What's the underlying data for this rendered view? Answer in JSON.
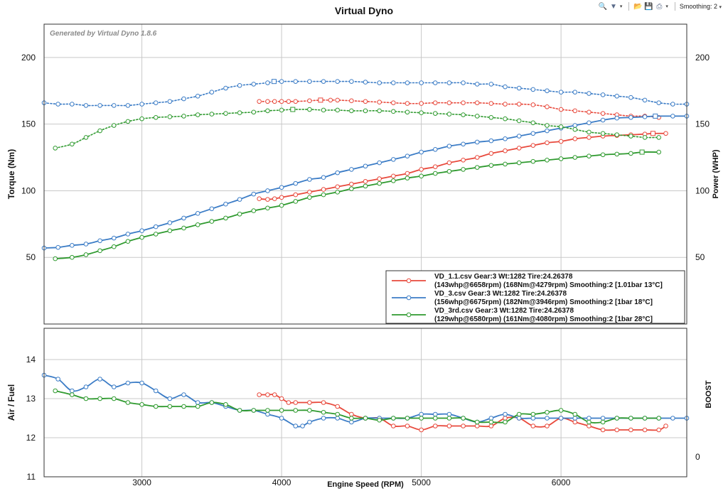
{
  "title": "Virtual Dyno",
  "toolbar": {
    "smoothing_label": "Smoothing: 2",
    "icons": [
      "zoom-icon",
      "filter-icon",
      "open-file-icon",
      "save-icon",
      "print-icon"
    ]
  },
  "watermark": "Generated by Virtual Dyno 1.8.6",
  "colors": {
    "red": "#e8493c",
    "blue": "#3b7cc6",
    "green": "#2f9a2f",
    "grid": "#c8c8c8",
    "axis": "#333333"
  },
  "chart_data": [
    {
      "id": "power-torque",
      "type": "line",
      "xlim": [
        2300,
        6900
      ],
      "ylim": [
        0,
        225
      ],
      "ylabel": "Torque (Nm)",
      "ylabel_right": "Power (WHP)",
      "x_ticks": [
        3000,
        4000,
        5000,
        6000
      ],
      "y_ticks": [
        50,
        100,
        150,
        200
      ],
      "legend_position": "bottom-right",
      "series": [
        {
          "name": "VD_1.1.csv  Gear:3  Wt:1282  Tire:24.26378",
          "summary": "(143whp@6658rpm)  (168Nm@4279rpm)  Smoothing:2  [1.01bar  13°C]",
          "color": "red",
          "torque": {
            "x": [
              3840,
              3900,
              3950,
              4000,
              4050,
              4100,
              4200,
              4279,
              4350,
              4400,
              4500,
              4600,
              4700,
              4800,
              4900,
              5000,
              5100,
              5200,
              5300,
              5400,
              5500,
              5600,
              5700,
              5800,
              5900,
              6000,
              6100,
              6200,
              6300,
              6400,
              6500,
              6600,
              6700
            ],
            "y": [
              167,
              167,
              167,
              167,
              167,
              167,
              167.5,
              168,
              168,
              168,
              167.5,
              167,
              166.5,
              166,
              165.5,
              165.5,
              166,
              166,
              166,
              166,
              165.5,
              165,
              165,
              164.5,
              163,
              161,
              160,
              159,
              158,
              157,
              156,
              156,
              155
            ]
          },
          "power": {
            "x": [
              3840,
              3900,
              3950,
              4000,
              4100,
              4200,
              4300,
              4400,
              4500,
              4600,
              4700,
              4800,
              4900,
              5000,
              5100,
              5200,
              5300,
              5400,
              5500,
              5600,
              5700,
              5800,
              5900,
              6000,
              6100,
              6200,
              6300,
              6400,
              6500,
              6600,
              6658,
              6750
            ],
            "y": [
              94,
              93.5,
              94,
              95,
              97,
              99,
              101,
              103,
              105,
              107,
              109,
              111,
              113,
              116,
              118,
              121,
              123,
              125,
              128,
              130,
              132,
              134,
              136,
              137,
              139,
              140,
              141,
              141.5,
              142,
              142.5,
              143,
              143
            ]
          },
          "afr": {
            "x": [
              3840,
              3900,
              3950,
              4000,
              4050,
              4100,
              4200,
              4300,
              4400,
              4500,
              4600,
              4700,
              4800,
              4900,
              5000,
              5100,
              5200,
              5300,
              5400,
              5500,
              5600,
              5700,
              5800,
              5900,
              6000,
              6100,
              6200,
              6300,
              6400,
              6500,
              6600,
              6700,
              6750
            ],
            "y": [
              13.1,
              13.1,
              13.1,
              13.0,
              12.9,
              12.9,
              12.9,
              12.9,
              12.8,
              12.6,
              12.5,
              12.5,
              12.3,
              12.3,
              12.2,
              12.3,
              12.3,
              12.3,
              12.3,
              12.3,
              12.5,
              12.5,
              12.3,
              12.3,
              12.5,
              12.4,
              12.3,
              12.2,
              12.2,
              12.2,
              12.2,
              12.2,
              12.3
            ]
          }
        },
        {
          "name": "VD_3.csv  Gear:3  Wt:1282  Tire:24.26378",
          "summary": "(156whp@6675rpm)  (182Nm@3946rpm)  Smoothing:2  [1bar  18°C]",
          "color": "blue",
          "torque": {
            "x": [
              2300,
              2400,
              2500,
              2600,
              2700,
              2800,
              2900,
              3000,
              3100,
              3200,
              3300,
              3400,
              3500,
              3600,
              3700,
              3800,
              3900,
              3946,
              4000,
              4100,
              4200,
              4300,
              4400,
              4500,
              4600,
              4700,
              4800,
              4900,
              5000,
              5100,
              5200,
              5300,
              5400,
              5500,
              5600,
              5700,
              5800,
              5900,
              6000,
              6100,
              6200,
              6300,
              6400,
              6500,
              6600,
              6700,
              6800,
              6900
            ],
            "y": [
              166,
              165,
              165,
              164,
              164,
              164,
              164,
              165,
              166,
              167,
              169,
              171,
              174,
              177,
              179,
              180,
              181,
              182,
              182,
              182,
              182,
              182,
              182,
              182,
              181.5,
              181,
              181,
              181,
              181,
              181,
              181,
              181,
              180,
              180,
              178,
              177,
              176,
              175,
              174,
              174,
              173,
              172,
              171,
              170,
              168,
              166,
              165,
              165
            ]
          },
          "power": {
            "x": [
              2300,
              2400,
              2500,
              2600,
              2700,
              2800,
              2900,
              3000,
              3100,
              3200,
              3300,
              3400,
              3500,
              3600,
              3700,
              3800,
              3900,
              4000,
              4100,
              4200,
              4300,
              4400,
              4500,
              4600,
              4700,
              4800,
              4900,
              5000,
              5100,
              5200,
              5300,
              5400,
              5500,
              5600,
              5700,
              5800,
              5900,
              6000,
              6100,
              6200,
              6300,
              6400,
              6500,
              6600,
              6675,
              6800,
              6900
            ],
            "y": [
              57,
              57.5,
              59,
              60,
              62.5,
              64.5,
              67.5,
              70,
              73,
              76,
              79.5,
              83,
              86.5,
              90,
              93.5,
              97.5,
              100,
              102.5,
              105.5,
              108.5,
              110,
              113.5,
              116,
              118.5,
              121,
              123.5,
              126,
              129,
              131,
              133.5,
              135,
              136.5,
              137.5,
              139,
              141,
              143,
              145,
              147,
              149,
              151,
              153,
              154.5,
              155,
              155.5,
              156,
              156,
              156
            ]
          },
          "afr": {
            "x": [
              2300,
              2400,
              2500,
              2600,
              2700,
              2800,
              2900,
              3000,
              3100,
              3200,
              3300,
              3400,
              3500,
              3600,
              3700,
              3800,
              3900,
              4000,
              4100,
              4150,
              4200,
              4300,
              4400,
              4500,
              4600,
              4700,
              4800,
              4900,
              5000,
              5100,
              5200,
              5300,
              5400,
              5500,
              5600,
              5700,
              5800,
              5900,
              6000,
              6100,
              6200,
              6300,
              6400,
              6500,
              6600,
              6700,
              6800,
              6900
            ],
            "y": [
              13.6,
              13.5,
              13.2,
              13.3,
              13.5,
              13.3,
              13.4,
              13.4,
              13.2,
              13.0,
              13.1,
              12.9,
              12.9,
              12.8,
              12.7,
              12.7,
              12.6,
              12.5,
              12.3,
              12.3,
              12.4,
              12.5,
              12.5,
              12.4,
              12.5,
              12.5,
              12.5,
              12.5,
              12.6,
              12.6,
              12.6,
              12.5,
              12.4,
              12.5,
              12.6,
              12.5,
              12.5,
              12.5,
              12.5,
              12.5,
              12.5,
              12.5,
              12.5,
              12.5,
              12.5,
              12.5,
              12.5,
              12.5
            ]
          }
        },
        {
          "name": "VD_3rd.csv  Gear:3  Wt:1282  Tire:24.26378",
          "summary": "(129whp@6580rpm)  (161Nm@4080rpm)  Smoothing:2  [1bar  28°C]",
          "color": "green",
          "torque": {
            "x": [
              2380,
              2500,
              2600,
              2700,
              2800,
              2900,
              3000,
              3100,
              3200,
              3300,
              3400,
              3500,
              3600,
              3700,
              3800,
              3900,
              4000,
              4080,
              4200,
              4300,
              4400,
              4500,
              4600,
              4700,
              4800,
              4900,
              5000,
              5100,
              5200,
              5300,
              5400,
              5500,
              5600,
              5700,
              5800,
              5900,
              6000,
              6100,
              6200,
              6300,
              6400,
              6500,
              6600,
              6700
            ],
            "y": [
              132,
              135,
              140,
              145,
              149,
              152,
              154,
              155,
              155.5,
              156,
              157,
              157.5,
              158,
              158.5,
              159,
              160,
              160.5,
              161,
              161,
              160.5,
              160.5,
              160,
              160,
              160,
              159.5,
              159,
              158.5,
              158,
              157.5,
              157,
              156,
              155,
              154,
              152.5,
              151,
              149,
              148,
              146,
              144,
              143,
              142,
              141,
              140,
              140
            ]
          },
          "power": {
            "x": [
              2380,
              2500,
              2600,
              2700,
              2800,
              2900,
              3000,
              3100,
              3200,
              3300,
              3400,
              3500,
              3600,
              3700,
              3800,
              3900,
              4000,
              4100,
              4200,
              4300,
              4400,
              4500,
              4600,
              4700,
              4800,
              4900,
              5000,
              5100,
              5200,
              5300,
              5400,
              5500,
              5600,
              5700,
              5800,
              5900,
              6000,
              6100,
              6200,
              6300,
              6400,
              6500,
              6580,
              6700
            ],
            "y": [
              49,
              50,
              52,
              55,
              58,
              62,
              65,
              67.5,
              70,
              72,
              74.5,
              77,
              79.5,
              82.5,
              85,
              87,
              89,
              92,
              95,
              97,
              99,
              101.5,
              103.5,
              105.5,
              107.5,
              109.5,
              111,
              113,
              114.5,
              116,
              117.5,
              119,
              120,
              121,
              122,
              123,
              124,
              125,
              126,
              127,
              127.5,
              128,
              129,
              129
            ]
          },
          "afr": {
            "x": [
              2380,
              2500,
              2600,
              2700,
              2800,
              2900,
              3000,
              3100,
              3200,
              3300,
              3400,
              3500,
              3600,
              3700,
              3800,
              3900,
              4000,
              4100,
              4200,
              4300,
              4400,
              4500,
              4600,
              4700,
              4800,
              4900,
              5000,
              5100,
              5200,
              5300,
              5400,
              5500,
              5600,
              5700,
              5800,
              5900,
              6000,
              6100,
              6200,
              6300,
              6400,
              6500,
              6600,
              6700
            ],
            "y": [
              13.2,
              13.1,
              13.0,
              13.0,
              13.0,
              12.9,
              12.85,
              12.8,
              12.8,
              12.8,
              12.8,
              12.9,
              12.85,
              12.7,
              12.7,
              12.7,
              12.7,
              12.7,
              12.7,
              12.65,
              12.6,
              12.5,
              12.5,
              12.45,
              12.5,
              12.5,
              12.5,
              12.5,
              12.5,
              12.5,
              12.4,
              12.4,
              12.4,
              12.6,
              12.6,
              12.65,
              12.7,
              12.6,
              12.4,
              12.4,
              12.5,
              12.5,
              12.5,
              12.5
            ]
          }
        }
      ]
    },
    {
      "id": "air-fuel",
      "type": "line",
      "xlim": [
        2300,
        6900
      ],
      "ylim": [
        11,
        14.8
      ],
      "xlabel": "Engine Speed (RPM)",
      "ylabel": "Air / Fuel",
      "ylabel_right": "BOOST",
      "x_ticks": [
        3000,
        4000,
        5000,
        6000
      ],
      "y_ticks": [
        11,
        12,
        13,
        14
      ],
      "right_ticks": [
        0
      ]
    }
  ]
}
